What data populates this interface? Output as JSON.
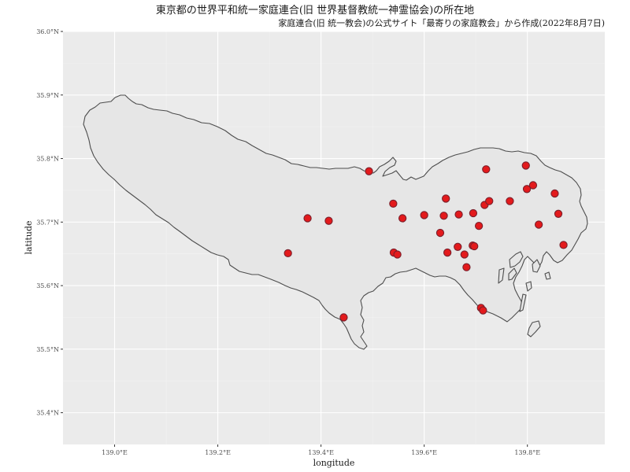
{
  "title": "東京都の世界平和統一家庭連合(旧 世界基督教統一神霊協会)の所在地",
  "subtitle": "家庭連合(旧 統一教会)の公式サイト「最寄りの家庭教会」から作成(2022年8月7日)",
  "chart_data": {
    "type": "scatter",
    "xlabel": "longitude",
    "ylabel": "latitude",
    "xlim": [
      138.9,
      139.95
    ],
    "ylim": [
      35.35,
      36.0
    ],
    "xticks": [
      {
        "value": 139.0,
        "label": "139.0°E"
      },
      {
        "value": 139.2,
        "label": "139.2°E"
      },
      {
        "value": 139.4,
        "label": "139.4°E"
      },
      {
        "value": 139.6,
        "label": "139.6°E"
      },
      {
        "value": 139.8,
        "label": "139.8°E"
      }
    ],
    "yticks": [
      {
        "value": 35.4,
        "label": "35.4°N"
      },
      {
        "value": 35.5,
        "label": "35.5°N"
      },
      {
        "value": 35.6,
        "label": "35.6°N"
      },
      {
        "value": 35.7,
        "label": "35.7°N"
      },
      {
        "value": 35.8,
        "label": "35.8°N"
      },
      {
        "value": 35.9,
        "label": "35.9°N"
      },
      {
        "value": 36.0,
        "label": "36.0°N"
      }
    ],
    "grid": true,
    "colors": {
      "panel": "#ebebeb",
      "land": "#e6e6e6",
      "border": "#4d4d4d",
      "point": "#e31a1c",
      "point_edge": "#7a1f2b"
    },
    "points": [
      {
        "lon": 139.493,
        "lat": 35.78
      },
      {
        "lon": 139.374,
        "lat": 35.706
      },
      {
        "lon": 139.415,
        "lat": 35.702
      },
      {
        "lon": 139.336,
        "lat": 35.651
      },
      {
        "lon": 139.444,
        "lat": 35.55
      },
      {
        "lon": 139.54,
        "lat": 35.729
      },
      {
        "lon": 139.558,
        "lat": 35.706
      },
      {
        "lon": 139.6,
        "lat": 35.711
      },
      {
        "lon": 139.631,
        "lat": 35.683
      },
      {
        "lon": 139.642,
        "lat": 35.737
      },
      {
        "lon": 139.638,
        "lat": 35.71
      },
      {
        "lon": 139.667,
        "lat": 35.712
      },
      {
        "lon": 139.695,
        "lat": 35.714
      },
      {
        "lon": 139.706,
        "lat": 35.694
      },
      {
        "lon": 139.717,
        "lat": 35.727
      },
      {
        "lon": 139.726,
        "lat": 35.733
      },
      {
        "lon": 139.72,
        "lat": 35.783
      },
      {
        "lon": 139.766,
        "lat": 35.733
      },
      {
        "lon": 139.797,
        "lat": 35.789
      },
      {
        "lon": 139.799,
        "lat": 35.752
      },
      {
        "lon": 139.811,
        "lat": 35.758
      },
      {
        "lon": 139.853,
        "lat": 35.745
      },
      {
        "lon": 139.86,
        "lat": 35.713
      },
      {
        "lon": 139.822,
        "lat": 35.696
      },
      {
        "lon": 139.87,
        "lat": 35.664
      },
      {
        "lon": 139.541,
        "lat": 35.652
      },
      {
        "lon": 139.548,
        "lat": 35.649
      },
      {
        "lon": 139.645,
        "lat": 35.652
      },
      {
        "lon": 139.665,
        "lat": 35.661
      },
      {
        "lon": 139.678,
        "lat": 35.649
      },
      {
        "lon": 139.694,
        "lat": 35.663
      },
      {
        "lon": 139.697,
        "lat": 35.662
      },
      {
        "lon": 139.682,
        "lat": 35.629
      },
      {
        "lon": 139.71,
        "lat": 35.565
      },
      {
        "lon": 139.714,
        "lat": 35.561
      }
    ]
  }
}
